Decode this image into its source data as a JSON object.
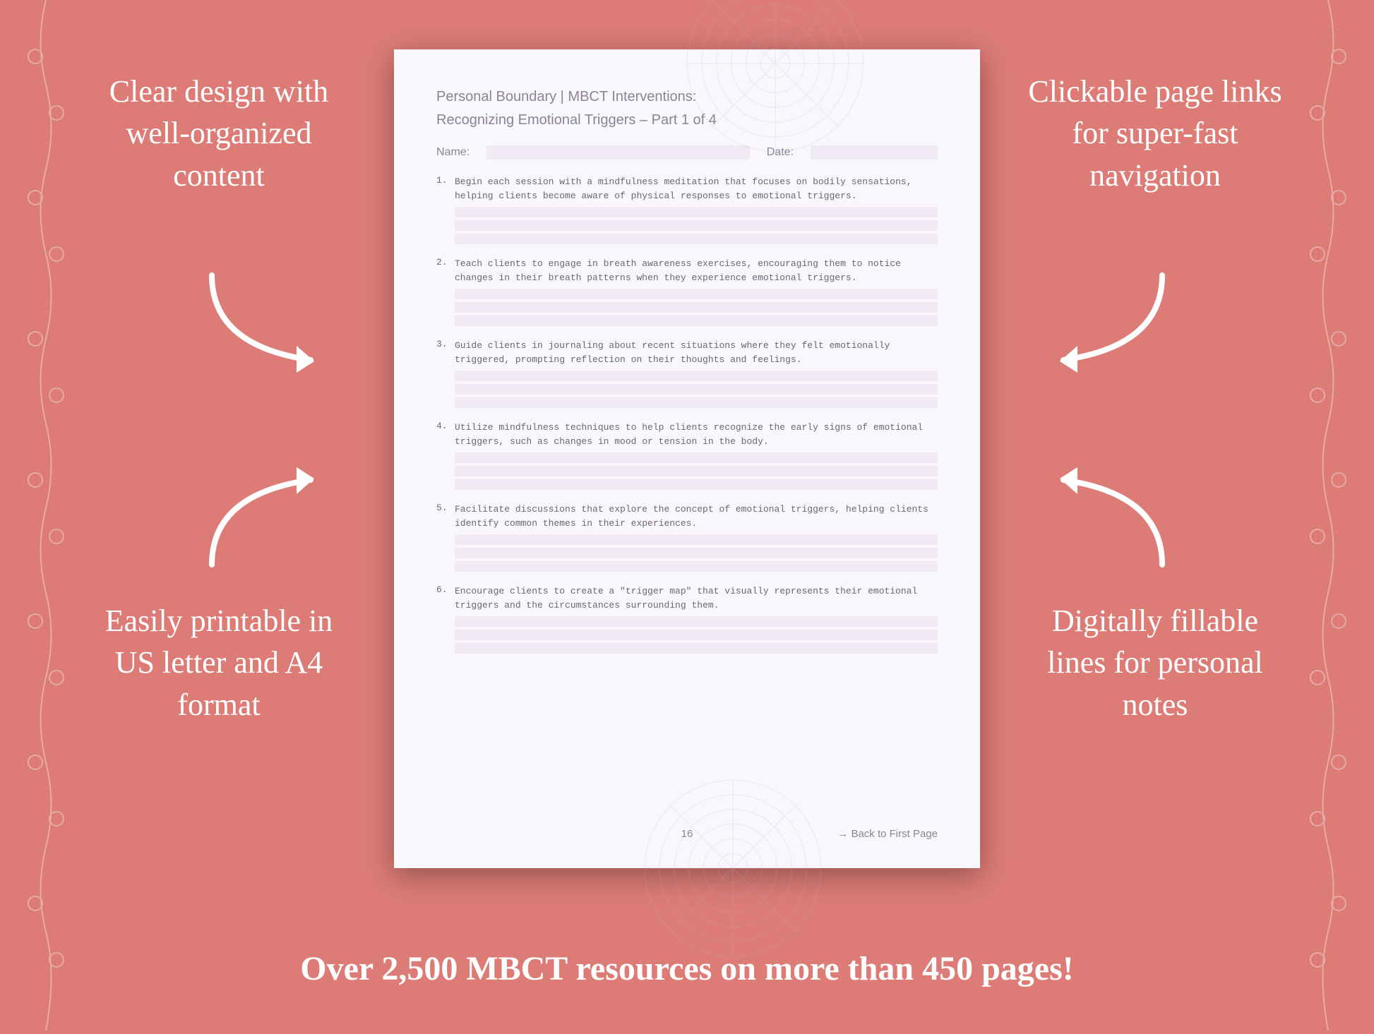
{
  "background_color": "#dd7c77",
  "page_background": "#faf7fc",
  "field_fill": "#f0eaf5",
  "text_muted": "#8a8496",
  "callout_color": "#ffffff",
  "callouts": {
    "top_left": "Clear design with well-organized content",
    "top_right": "Clickable page links for super-fast navigation",
    "bottom_left": "Easily printable in US letter and A4 format",
    "bottom_right": "Digitally fillable lines for personal notes"
  },
  "bottom_banner": "Over 2,500 MBCT resources on more than 450 pages!",
  "worksheet": {
    "header_line1": "Personal Boundary | MBCT Interventions:",
    "header_line2": "Recognizing Emotional Triggers  – Part 1 of 4",
    "name_label": "Name:",
    "date_label": "Date:",
    "items": [
      {
        "num": "1.",
        "text": "Begin each session with a mindfulness meditation that focuses on bodily sensations, helping clients become aware of physical responses to emotional triggers."
      },
      {
        "num": "2.",
        "text": "Teach clients to engage in breath awareness exercises, encouraging them to notice changes in their breath patterns when they experience emotional triggers."
      },
      {
        "num": "3.",
        "text": "Guide clients in journaling about recent situations where they felt emotionally triggered, prompting reflection on their thoughts and feelings."
      },
      {
        "num": "4.",
        "text": "Utilize mindfulness techniques to help clients recognize the early signs of emotional triggers, such as changes in mood or tension in the body."
      },
      {
        "num": "5.",
        "text": "Facilitate discussions that explore the concept of emotional triggers, helping clients identify common themes in their experiences."
      },
      {
        "num": "6.",
        "text": "Encourage clients to create a \"trigger map\" that visually represents their emotional triggers and the circumstances surrounding them."
      }
    ],
    "page_number": "16",
    "back_link": "→ Back to First Page"
  }
}
